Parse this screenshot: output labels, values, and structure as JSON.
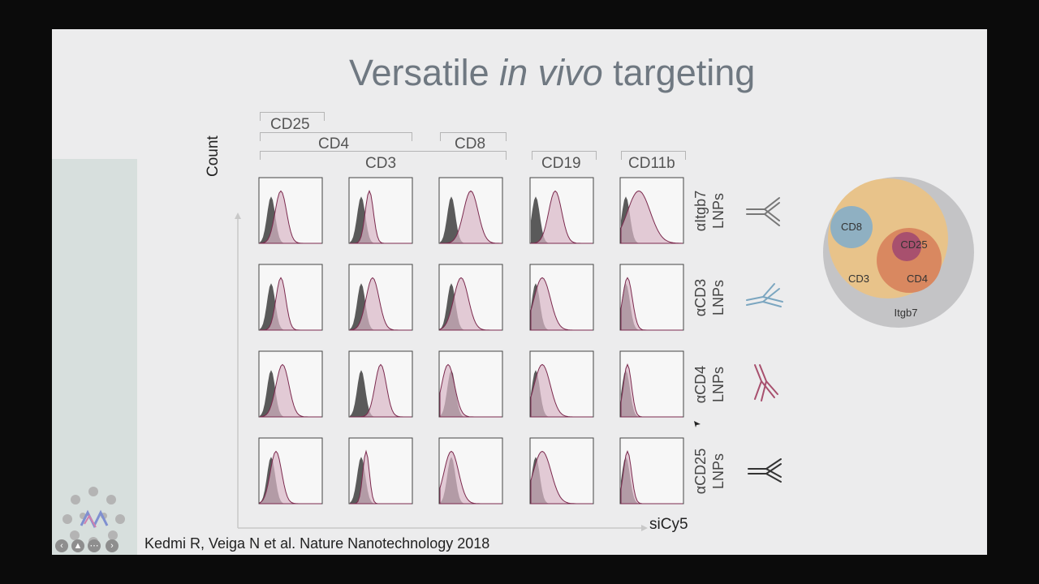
{
  "slide": {
    "title_pre": "Versatile ",
    "title_em": "in vivo",
    "title_post": " targeting",
    "column_headers": {
      "cd25": "CD25",
      "cd4": "CD4",
      "cd3": "CD3",
      "cd8": "CD8",
      "cd19": "CD19",
      "cd11b": "CD11b"
    },
    "rows": [
      {
        "antibody": "αItgb7",
        "suffix": "LNPs"
      },
      {
        "antibody": "αCD3",
        "suffix": "LNPs"
      },
      {
        "antibody": "αCD4",
        "suffix": "LNPs"
      },
      {
        "antibody": "αCD25",
        "suffix": "LNPs"
      }
    ],
    "y_axis_label": "Count",
    "x_axis_label": "siCy5",
    "citation": "Kedmi R, Veiga N et al. Nature Nanotechnology 2018",
    "venn": {
      "labels": [
        "CD8",
        "CD25",
        "CD3",
        "CD4",
        "Itgb7"
      ]
    },
    "colors": {
      "control_fill": "#5a5a5a",
      "treated_fill": "#d9b6c6",
      "treated_line": "#7b2a4e",
      "itgb7_circle": "#c4c4c6",
      "cd3_circle": "#e8c38a",
      "cd4_circle": "#d98860",
      "cd25_circle": "#a8506e",
      "cd8_circle": "#8fb0c2",
      "antibody_icon_colors": [
        "#777777",
        "#7ba6c0",
        "#a8506e",
        "#333333"
      ]
    }
  }
}
